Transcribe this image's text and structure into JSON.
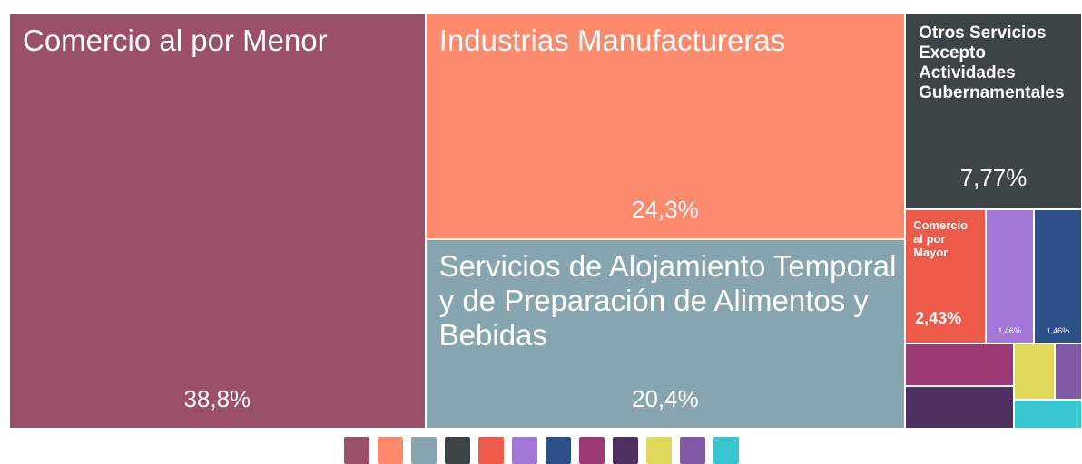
{
  "chart_data": {
    "type": "treemap",
    "categories": [
      "Comercio al por Menor",
      "Industrias Manufactureras",
      "Servicios de Alojamiento Temporal y de Preparación de Alimentos y Bebidas",
      "Otros Servicios Excepto Actividades Gubernamentales",
      "Comercio al por Mayor",
      null,
      null,
      null,
      null,
      null,
      null,
      null
    ],
    "values": [
      38.8,
      24.3,
      20.4,
      7.77,
      2.43,
      1.46,
      1.46,
      1.04,
      1.04,
      0.51,
      0.34,
      0.44
    ],
    "value_labels": [
      "38,8%",
      "24,3%",
      "20,4%",
      "7,77%",
      "2,43%",
      "1,46%",
      "1,46%",
      null,
      null,
      null,
      null,
      null
    ],
    "colors": [
      "#9a5066",
      "#fd8a6c",
      "#87a5ae",
      "#3d4447",
      "#ee5a4a",
      "#a377d8",
      "#2b4f86",
      "#9c3a74",
      "#4f2f60",
      "#e0d85a",
      "#7f59a6",
      "#37c5d0"
    ]
  }
}
